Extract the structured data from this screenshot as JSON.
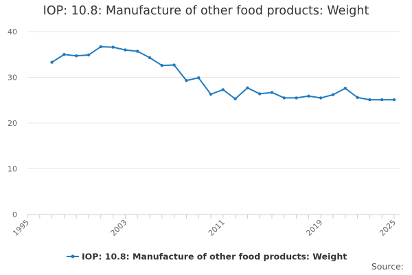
{
  "chart_data": {
    "type": "line",
    "title": "IOP: 10.8: Manufacture of other food products: Weight",
    "xlabel": "",
    "ylabel": "",
    "xlim": [
      1995,
      2025
    ],
    "ylim": [
      0,
      40
    ],
    "x_ticks": [
      "1995",
      "2003",
      "2011",
      "2019",
      "2025"
    ],
    "y_ticks": [
      "0",
      "10",
      "20",
      "30",
      "40"
    ],
    "grid": true,
    "legend_position": "bottom-center",
    "series": [
      {
        "name": "IOP: 10.8: Manufacture of other food products: Weight",
        "color": "#1f7bbf",
        "x": [
          1997,
          1998,
          1999,
          2000,
          2001,
          2002,
          2003,
          2004,
          2005,
          2006,
          2007,
          2008,
          2009,
          2010,
          2011,
          2012,
          2013,
          2014,
          2015,
          2016,
          2017,
          2018,
          2019,
          2020,
          2021,
          2022,
          2023,
          2024,
          2025
        ],
        "values": [
          33.3,
          35.0,
          34.7,
          34.9,
          36.7,
          36.6,
          36.0,
          35.7,
          34.3,
          32.6,
          32.7,
          29.3,
          29.9,
          26.3,
          27.3,
          25.3,
          27.7,
          26.4,
          26.7,
          25.5,
          25.5,
          25.9,
          25.5,
          26.2,
          27.6,
          25.6,
          25.1,
          25.1,
          25.1
        ]
      }
    ]
  },
  "source": "Source:"
}
